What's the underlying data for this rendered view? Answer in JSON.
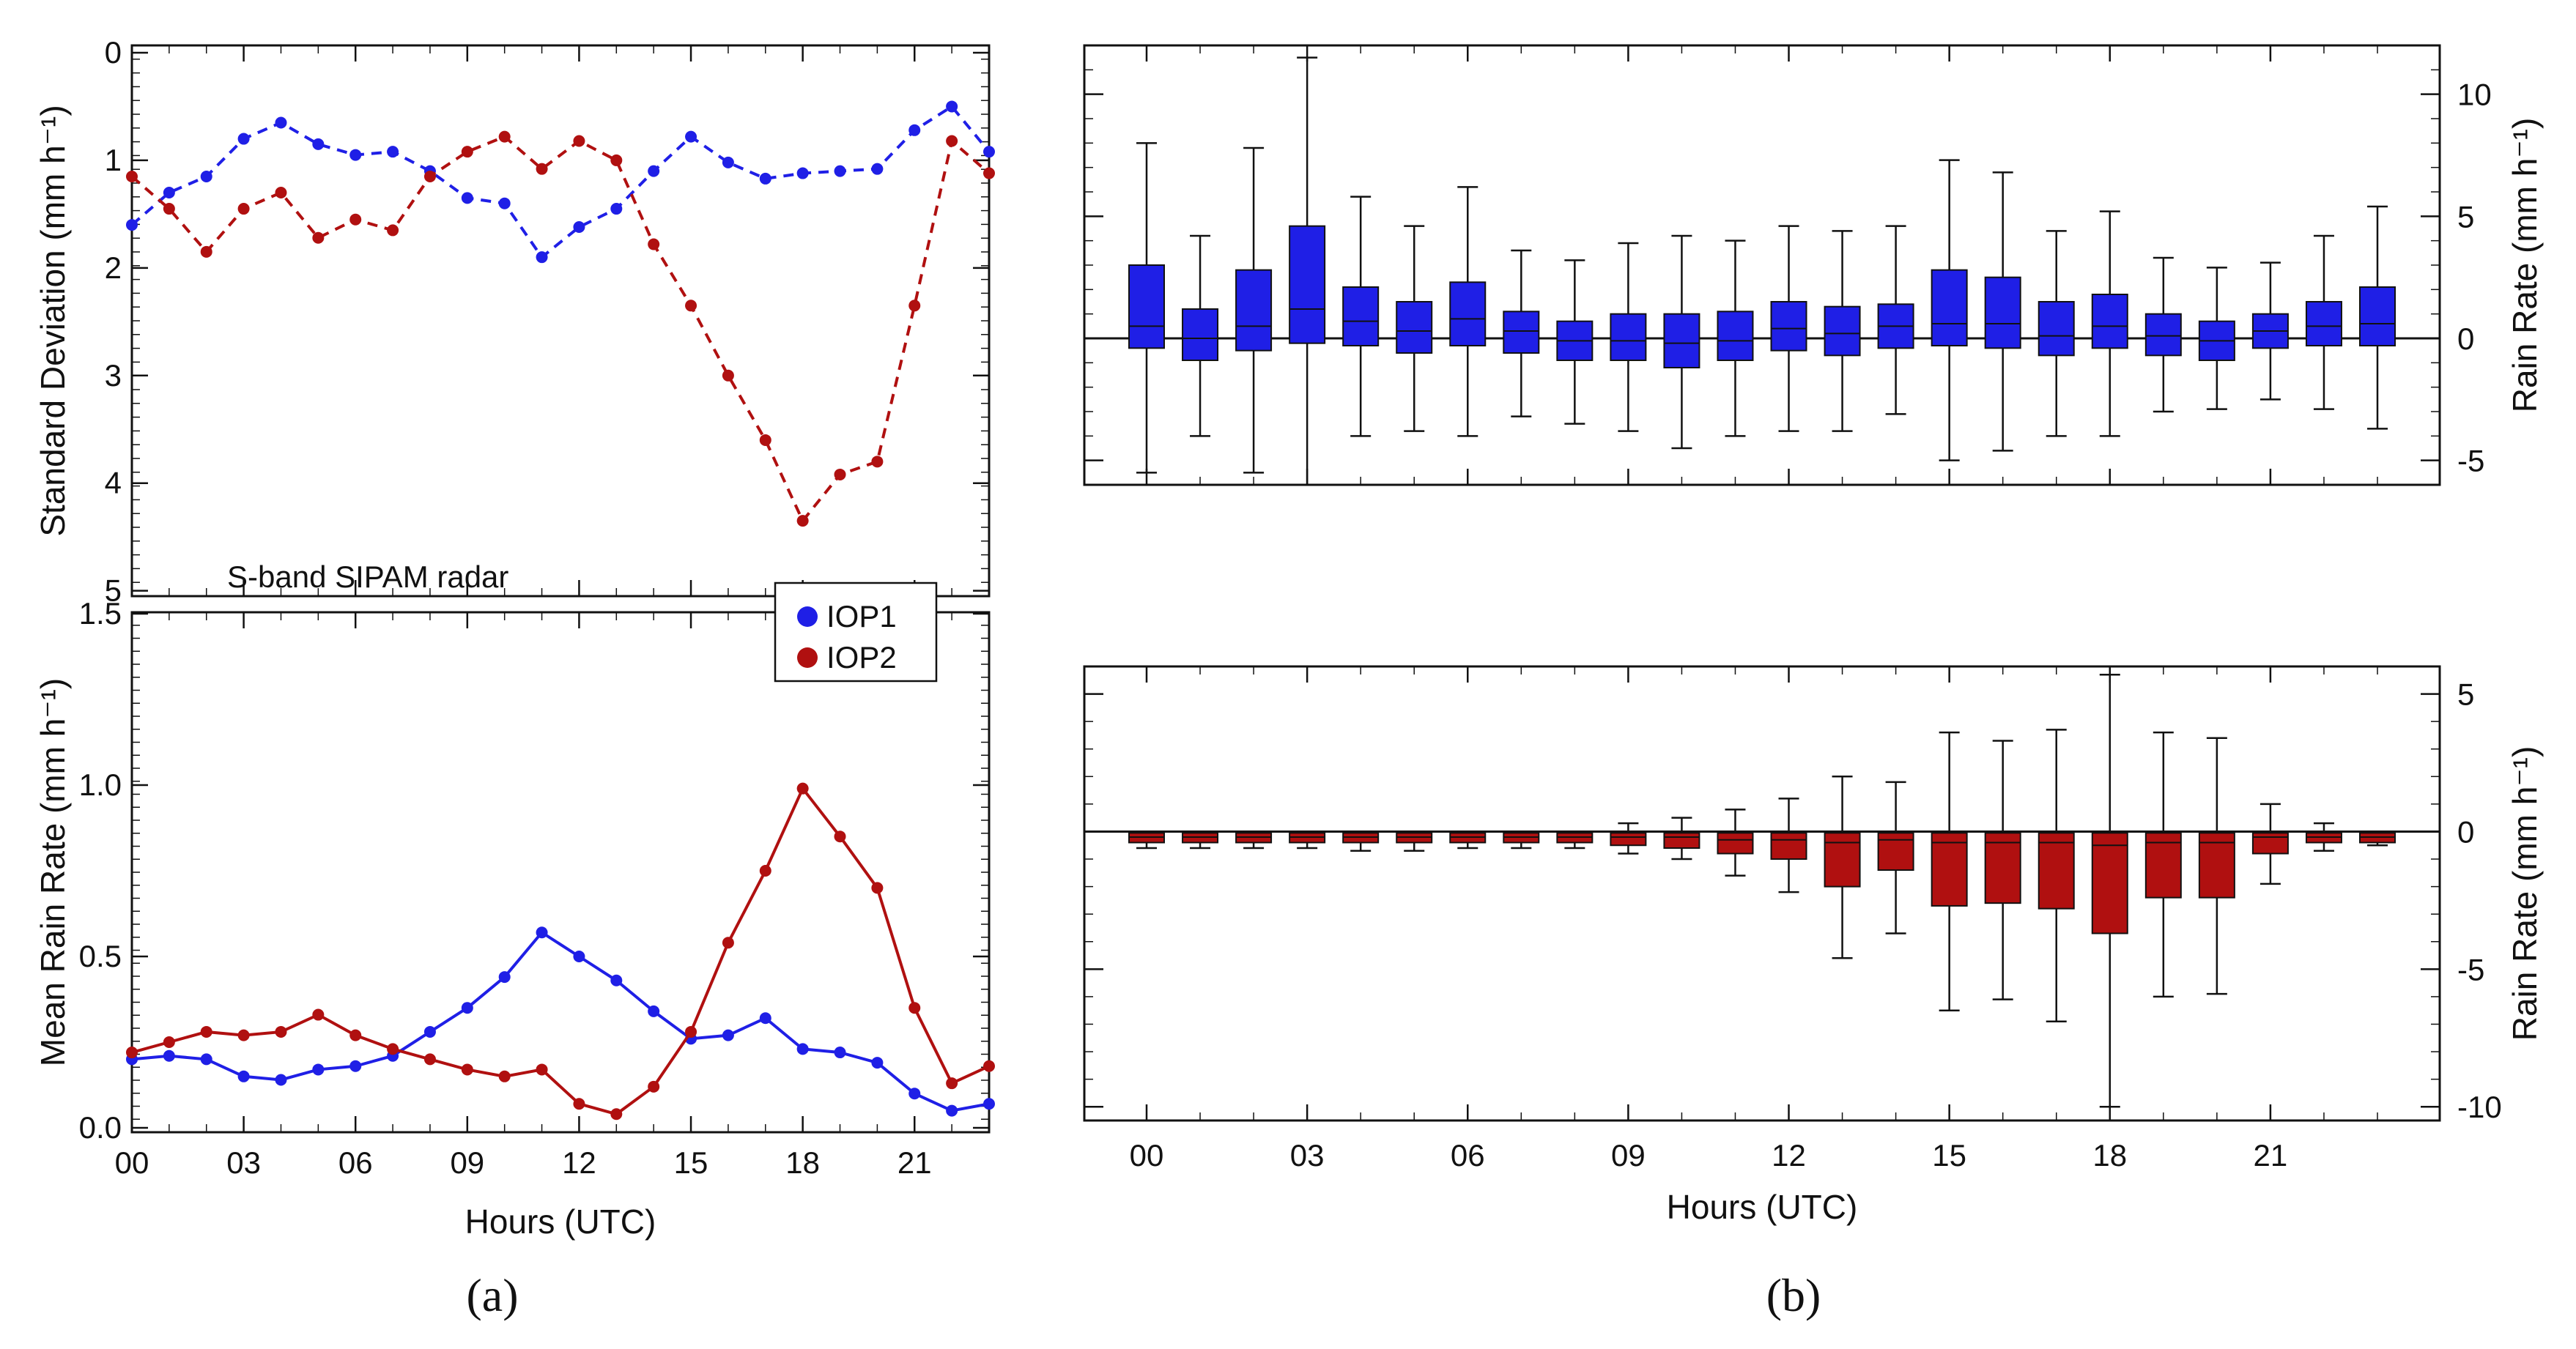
{
  "figure": {
    "panel_a_label": "(a)",
    "panel_b_label": "(b)",
    "colors": {
      "iop1": "#1f1fe6",
      "iop2": "#b01010",
      "axis": "#111111"
    }
  },
  "chart_data": [
    {
      "id": "a-top",
      "type": "line",
      "title": "",
      "ylabel": "Standard Deviation (mm h⁻¹)",
      "ylim": [
        5,
        0
      ],
      "y_inverted": true,
      "yticks": [
        "0",
        "1",
        "2",
        "3",
        "4",
        "5"
      ],
      "x": [
        0,
        1,
        2,
        3,
        4,
        5,
        6,
        7,
        8,
        9,
        10,
        11,
        12,
        13,
        14,
        15,
        16,
        17,
        18,
        19,
        20,
        21,
        22,
        23
      ],
      "series": [
        {
          "name": "IOP1",
          "color": "#1f1fe6",
          "values": [
            1.6,
            1.3,
            1.15,
            0.8,
            0.65,
            0.85,
            0.95,
            0.92,
            1.1,
            1.35,
            1.4,
            1.9,
            1.62,
            1.45,
            1.1,
            0.78,
            1.02,
            1.17,
            1.12,
            1.1,
            1.08,
            0.72,
            0.5,
            0.92
          ]
        },
        {
          "name": "IOP2",
          "color": "#b01010",
          "values": [
            1.15,
            1.45,
            1.85,
            1.45,
            1.3,
            1.72,
            1.55,
            1.65,
            1.15,
            0.92,
            0.78,
            1.08,
            0.82,
            1.0,
            1.78,
            2.35,
            3.0,
            3.6,
            4.35,
            3.92,
            3.8,
            2.35,
            0.82,
            1.12
          ]
        }
      ],
      "annotation": "S-band SIPAM radar"
    },
    {
      "id": "a-bottom",
      "type": "line",
      "xlabel": "Hours (UTC)",
      "ylabel": "Mean Rain Rate (mm h⁻¹)",
      "ylim": [
        0,
        1.5
      ],
      "yticks": [
        "0.0",
        "0.5",
        "1.0",
        "1.5"
      ],
      "xticks": [
        "00",
        "03",
        "06",
        "09",
        "12",
        "15",
        "18",
        "21"
      ],
      "x": [
        0,
        1,
        2,
        3,
        4,
        5,
        6,
        7,
        8,
        9,
        10,
        11,
        12,
        13,
        14,
        15,
        16,
        17,
        18,
        19,
        20,
        21,
        22,
        23
      ],
      "series": [
        {
          "name": "IOP1",
          "color": "#1f1fe6",
          "values": [
            0.2,
            0.21,
            0.2,
            0.15,
            0.14,
            0.17,
            0.18,
            0.21,
            0.28,
            0.35,
            0.44,
            0.57,
            0.5,
            0.43,
            0.34,
            0.26,
            0.27,
            0.32,
            0.23,
            0.22,
            0.19,
            0.1,
            0.05,
            0.07
          ]
        },
        {
          "name": "IOP2",
          "color": "#b01010",
          "values": [
            0.22,
            0.25,
            0.28,
            0.27,
            0.28,
            0.33,
            0.27,
            0.23,
            0.2,
            0.17,
            0.15,
            0.17,
            0.07,
            0.04,
            0.12,
            0.28,
            0.54,
            0.75,
            0.99,
            0.85,
            0.7,
            0.35,
            0.13,
            0.18
          ]
        }
      ],
      "legend": {
        "position": "top-right",
        "entries": [
          "IOP1",
          "IOP2"
        ]
      }
    },
    {
      "id": "b-top",
      "type": "box",
      "color": "#1f1fe6",
      "ylabel": "Rain Rate (mm h⁻¹)",
      "ylim": [
        -6,
        12
      ],
      "yticks": [
        "-5",
        "0",
        "5",
        "10"
      ],
      "x": [
        0,
        1,
        2,
        3,
        4,
        5,
        6,
        7,
        8,
        9,
        10,
        11,
        12,
        13,
        14,
        15,
        16,
        17,
        18,
        19,
        20,
        21,
        22,
        23
      ],
      "boxes": [
        {
          "whisker_low": -5.5,
          "q1": -0.4,
          "median": 0.5,
          "q3": 3.0,
          "whisker_high": 8.0
        },
        {
          "whisker_low": -4.0,
          "q1": -0.9,
          "median": 0.0,
          "q3": 1.2,
          "whisker_high": 4.2
        },
        {
          "whisker_low": -5.5,
          "q1": -0.5,
          "median": 0.5,
          "q3": 2.8,
          "whisker_high": 7.8
        },
        {
          "whisker_low": -6.0,
          "q1": -0.2,
          "median": 1.2,
          "q3": 4.6,
          "whisker_high": 11.5
        },
        {
          "whisker_low": -4.0,
          "q1": -0.3,
          "median": 0.7,
          "q3": 2.1,
          "whisker_high": 5.8
        },
        {
          "whisker_low": -3.8,
          "q1": -0.6,
          "median": 0.3,
          "q3": 1.5,
          "whisker_high": 4.6
        },
        {
          "whisker_low": -4.0,
          "q1": -0.3,
          "median": 0.8,
          "q3": 2.3,
          "whisker_high": 6.2
        },
        {
          "whisker_low": -3.2,
          "q1": -0.6,
          "median": 0.3,
          "q3": 1.1,
          "whisker_high": 3.6
        },
        {
          "whisker_low": -3.5,
          "q1": -0.9,
          "median": -0.1,
          "q3": 0.7,
          "whisker_high": 3.2
        },
        {
          "whisker_low": -3.8,
          "q1": -0.9,
          "median": -0.1,
          "q3": 1.0,
          "whisker_high": 3.9
        },
        {
          "whisker_low": -4.5,
          "q1": -1.2,
          "median": -0.2,
          "q3": 1.0,
          "whisker_high": 4.2
        },
        {
          "whisker_low": -4.0,
          "q1": -0.9,
          "median": -0.1,
          "q3": 1.1,
          "whisker_high": 4.0
        },
        {
          "whisker_low": -3.8,
          "q1": -0.5,
          "median": 0.4,
          "q3": 1.5,
          "whisker_high": 4.6
        },
        {
          "whisker_low": -3.8,
          "q1": -0.7,
          "median": 0.2,
          "q3": 1.3,
          "whisker_high": 4.4
        },
        {
          "whisker_low": -3.1,
          "q1": -0.4,
          "median": 0.5,
          "q3": 1.4,
          "whisker_high": 4.6
        },
        {
          "whisker_low": -5.0,
          "q1": -0.3,
          "median": 0.6,
          "q3": 2.8,
          "whisker_high": 7.3
        },
        {
          "whisker_low": -4.6,
          "q1": -0.4,
          "median": 0.6,
          "q3": 2.5,
          "whisker_high": 6.8
        },
        {
          "whisker_low": -4.0,
          "q1": -0.7,
          "median": 0.1,
          "q3": 1.5,
          "whisker_high": 4.4
        },
        {
          "whisker_low": -4.0,
          "q1": -0.4,
          "median": 0.5,
          "q3": 1.8,
          "whisker_high": 5.2
        },
        {
          "whisker_low": -3.0,
          "q1": -0.7,
          "median": 0.1,
          "q3": 1.0,
          "whisker_high": 3.3
        },
        {
          "whisker_low": -2.9,
          "q1": -0.9,
          "median": -0.1,
          "q3": 0.7,
          "whisker_high": 2.9
        },
        {
          "whisker_low": -2.5,
          "q1": -0.4,
          "median": 0.3,
          "q3": 1.0,
          "whisker_high": 3.1
        },
        {
          "whisker_low": -2.9,
          "q1": -0.3,
          "median": 0.5,
          "q3": 1.5,
          "whisker_high": 4.2
        },
        {
          "whisker_low": -3.7,
          "q1": -0.3,
          "median": 0.6,
          "q3": 2.1,
          "whisker_high": 5.4
        }
      ]
    },
    {
      "id": "b-bottom",
      "type": "box",
      "color": "#b01010",
      "xlabel": "Hours (UTC)",
      "ylabel": "Rain Rate (mm h⁻¹)",
      "ylim": [
        -10.5,
        6
      ],
      "yticks": [
        "5",
        "0",
        "-5",
        "-10"
      ],
      "xticks": [
        "00",
        "03",
        "06",
        "09",
        "12",
        "15",
        "18",
        "21"
      ],
      "x": [
        0,
        1,
        2,
        3,
        4,
        5,
        6,
        7,
        8,
        9,
        10,
        11,
        12,
        13,
        14,
        15,
        16,
        17,
        18,
        19,
        20,
        21,
        22,
        23
      ],
      "boxes": [
        {
          "whisker_low": -0.6,
          "q1": -0.4,
          "median": -0.2,
          "q3": -0.05,
          "whisker_high": 0.0
        },
        {
          "whisker_low": -0.6,
          "q1": -0.4,
          "median": -0.2,
          "q3": -0.05,
          "whisker_high": 0.0
        },
        {
          "whisker_low": -0.6,
          "q1": -0.4,
          "median": -0.2,
          "q3": -0.05,
          "whisker_high": 0.0
        },
        {
          "whisker_low": -0.6,
          "q1": -0.4,
          "median": -0.2,
          "q3": -0.05,
          "whisker_high": 0.0
        },
        {
          "whisker_low": -0.7,
          "q1": -0.4,
          "median": -0.2,
          "q3": -0.05,
          "whisker_high": 0.0
        },
        {
          "whisker_low": -0.7,
          "q1": -0.4,
          "median": -0.2,
          "q3": -0.05,
          "whisker_high": 0.0
        },
        {
          "whisker_low": -0.6,
          "q1": -0.4,
          "median": -0.2,
          "q3": -0.05,
          "whisker_high": 0.0
        },
        {
          "whisker_low": -0.6,
          "q1": -0.4,
          "median": -0.2,
          "q3": -0.05,
          "whisker_high": 0.0
        },
        {
          "whisker_low": -0.6,
          "q1": -0.4,
          "median": -0.2,
          "q3": -0.05,
          "whisker_high": 0.0
        },
        {
          "whisker_low": -0.8,
          "q1": -0.5,
          "median": -0.2,
          "q3": -0.05,
          "whisker_high": 0.3
        },
        {
          "whisker_low": -1.0,
          "q1": -0.6,
          "median": -0.2,
          "q3": -0.05,
          "whisker_high": 0.5
        },
        {
          "whisker_low": -1.6,
          "q1": -0.8,
          "median": -0.3,
          "q3": -0.05,
          "whisker_high": 0.8
        },
        {
          "whisker_low": -2.2,
          "q1": -1.0,
          "median": -0.3,
          "q3": -0.05,
          "whisker_high": 1.2
        },
        {
          "whisker_low": -4.6,
          "q1": -2.0,
          "median": -0.4,
          "q3": -0.05,
          "whisker_high": 2.0
        },
        {
          "whisker_low": -3.7,
          "q1": -1.4,
          "median": -0.3,
          "q3": -0.05,
          "whisker_high": 1.8
        },
        {
          "whisker_low": -6.5,
          "q1": -2.7,
          "median": -0.4,
          "q3": -0.05,
          "whisker_high": 3.6
        },
        {
          "whisker_low": -6.1,
          "q1": -2.6,
          "median": -0.4,
          "q3": -0.05,
          "whisker_high": 3.3
        },
        {
          "whisker_low": -6.9,
          "q1": -2.8,
          "median": -0.4,
          "q3": -0.05,
          "whisker_high": 3.7
        },
        {
          "whisker_low": -10.0,
          "q1": -3.7,
          "median": -0.5,
          "q3": -0.05,
          "whisker_high": 5.7
        },
        {
          "whisker_low": -6.0,
          "q1": -2.4,
          "median": -0.4,
          "q3": -0.05,
          "whisker_high": 3.6
        },
        {
          "whisker_low": -5.9,
          "q1": -2.4,
          "median": -0.4,
          "q3": -0.05,
          "whisker_high": 3.4
        },
        {
          "whisker_low": -1.9,
          "q1": -0.8,
          "median": -0.2,
          "q3": -0.05,
          "whisker_high": 1.0
        },
        {
          "whisker_low": -0.7,
          "q1": -0.4,
          "median": -0.2,
          "q3": -0.05,
          "whisker_high": 0.3
        },
        {
          "whisker_low": -0.5,
          "q1": -0.4,
          "median": -0.2,
          "q3": -0.05,
          "whisker_high": 0.0
        }
      ]
    }
  ]
}
